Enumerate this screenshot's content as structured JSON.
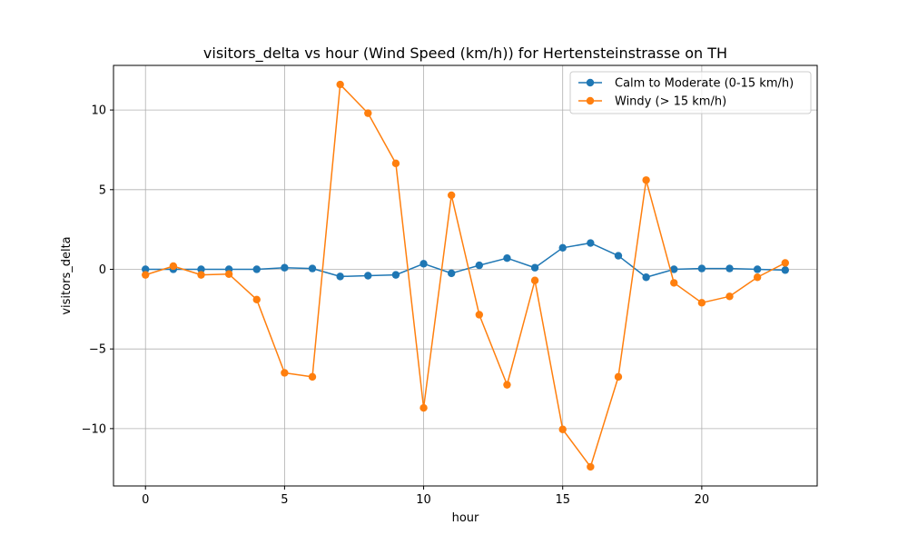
{
  "chart_data": {
    "type": "line",
    "title": "visitors_delta vs hour (Wind Speed (km/h)) for Hertensteinstrasse on TH",
    "xlabel": "hour",
    "ylabel": "visitors_delta",
    "xlim": [
      -1.15,
      24.15
    ],
    "ylim": [
      -13.6,
      12.8
    ],
    "xticks": [
      0,
      5,
      10,
      15,
      20
    ],
    "yticks": [
      -10,
      -5,
      0,
      5,
      10
    ],
    "xtick_labels": [
      "0",
      "5",
      "10",
      "15",
      "20"
    ],
    "ytick_labels": [
      "−10",
      "−5",
      "0",
      "5",
      "10"
    ],
    "grid": true,
    "legend_position": "top-right",
    "x": [
      0,
      1,
      2,
      3,
      4,
      5,
      6,
      7,
      8,
      9,
      10,
      11,
      12,
      13,
      14,
      15,
      16,
      17,
      18,
      19,
      20,
      21,
      22,
      23
    ],
    "series": [
      {
        "name": "Calm to Moderate (0-15 km/h)",
        "color": "#1f77b4",
        "values": [
          0.0,
          0.0,
          0.0,
          0.0,
          0.0,
          0.1,
          0.05,
          -0.45,
          -0.4,
          -0.35,
          0.35,
          -0.25,
          0.25,
          0.7,
          0.1,
          1.35,
          1.65,
          0.85,
          -0.5,
          0.0,
          0.05,
          0.05,
          0.0,
          -0.05
        ]
      },
      {
        "name": "Windy (> 15 km/h)",
        "color": "#ff7f0e",
        "values": [
          -0.35,
          0.2,
          -0.35,
          -0.3,
          -1.9,
          -6.5,
          -6.75,
          11.6,
          9.8,
          6.65,
          -8.7,
          4.65,
          -2.85,
          -7.25,
          -0.7,
          -10.05,
          -12.4,
          -6.75,
          5.6,
          -0.85,
          -2.1,
          -1.7,
          -0.5,
          0.4
        ]
      }
    ]
  }
}
